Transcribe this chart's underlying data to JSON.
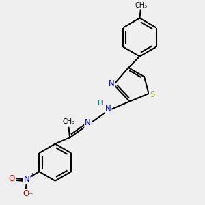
{
  "bg_color": "#efefef",
  "bond_color": "#000000",
  "bond_lw": 1.5,
  "atom_colors": {
    "N": "#0000cc",
    "S": "#bbbb00",
    "O": "#cc0000",
    "H": "#008080",
    "C": "#000000"
  },
  "font_size": 8.5,
  "small_font_size": 7.0,
  "dbo": 0.12,
  "ring_r": 0.85
}
